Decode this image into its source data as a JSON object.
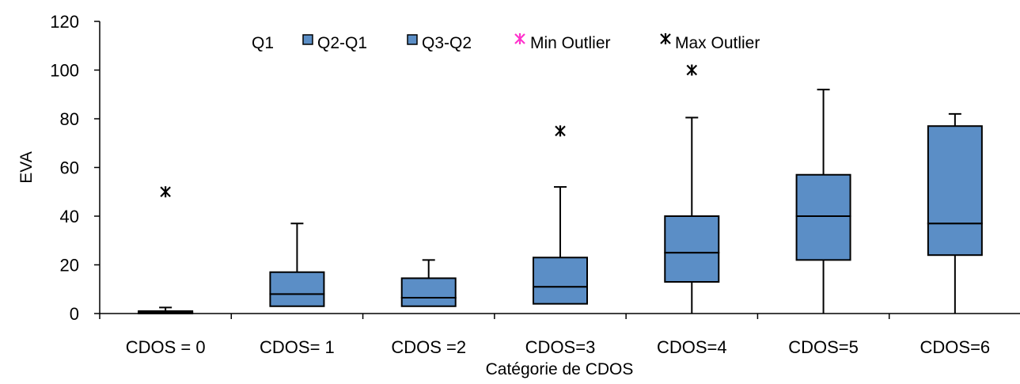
{
  "chart_data": {
    "type": "box",
    "xlabel": "Catégorie de CDOS",
    "ylabel": "EVA",
    "ylim": [
      0,
      120
    ],
    "yticks": [
      0,
      20,
      40,
      60,
      80,
      100,
      120
    ],
    "grid": false,
    "legend_position": "top",
    "legend": [
      {
        "label": "Q1",
        "kind": "none"
      },
      {
        "label": "Q2-Q1",
        "kind": "box"
      },
      {
        "label": "Q3-Q2",
        "kind": "box"
      },
      {
        "label": "Min Outlier",
        "kind": "star",
        "color": "#ff33cc"
      },
      {
        "label": "Max Outlier",
        "kind": "star",
        "color": "#000000"
      }
    ],
    "categories": [
      "CDOS = 0",
      "CDOS= 1",
      "CDOS =2",
      "CDOS=3",
      "CDOS=4",
      "CDOS=5",
      "CDOS=6"
    ],
    "boxes": [
      {
        "min": 0,
        "q1": 0,
        "median": 0.5,
        "q3": 1,
        "max": 2.5,
        "max_outlier": 50
      },
      {
        "min": 3,
        "q1": 3,
        "median": 8,
        "q3": 17,
        "max": 37,
        "max_outlier": null
      },
      {
        "min": 3,
        "q1": 3,
        "median": 6.5,
        "q3": 14.5,
        "max": 22,
        "max_outlier": null
      },
      {
        "min": 4,
        "q1": 4,
        "median": 11,
        "q3": 23,
        "max": 52,
        "max_outlier": 75
      },
      {
        "min": 0,
        "q1": 13,
        "median": 25,
        "q3": 40,
        "max": 80.5,
        "max_outlier": 100
      },
      {
        "min": 0,
        "q1": 22,
        "median": 40,
        "q3": 57,
        "max": 92,
        "max_outlier": null
      },
      {
        "min": 0,
        "q1": 24,
        "median": 37,
        "q3": 77,
        "max": 82,
        "max_outlier": null
      }
    ],
    "colors": {
      "box_fill": "#5b8ec6",
      "box_stroke": "#000000",
      "axis": "#000000"
    }
  }
}
